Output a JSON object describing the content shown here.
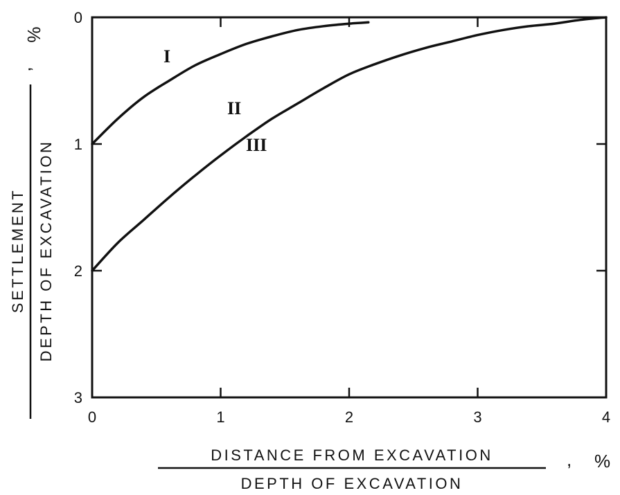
{
  "chart_data": {
    "type": "line",
    "xlim": [
      0,
      4
    ],
    "ylim": [
      0,
      3
    ],
    "y_inverted": true,
    "x_ticks": [
      "0",
      "1",
      "2",
      "3",
      "4"
    ],
    "y_ticks": [
      "0",
      "1",
      "2",
      "3"
    ],
    "xlabel": {
      "numerator": "DISTANCE FROM EXCAVATION",
      "denominator": "DEPTH OF EXCAVATION",
      "unit": "%",
      "separator": ","
    },
    "ylabel": {
      "numerator": "SETTLEMENT",
      "denominator": "DEPTH OF EXCAVATION",
      "unit": "%",
      "separator": ","
    },
    "grid": false,
    "curve_labels": [
      "I",
      "II",
      "III"
    ],
    "series": [
      {
        "name": "I",
        "x": [
          0,
          0.2,
          0.4,
          0.6,
          0.8,
          1.0,
          1.2,
          1.4,
          1.6,
          1.8,
          2.0,
          2.15
        ],
        "y": [
          1.0,
          0.8,
          0.63,
          0.5,
          0.38,
          0.29,
          0.21,
          0.15,
          0.1,
          0.07,
          0.05,
          0.04
        ]
      },
      {
        "name": "II / III",
        "x": [
          0,
          0.2,
          0.4,
          0.6,
          0.8,
          1.0,
          1.2,
          1.4,
          1.6,
          1.8,
          2.0,
          2.2,
          2.4,
          2.6,
          2.8,
          3.0,
          3.2,
          3.4,
          3.6,
          3.8,
          4.0
        ],
        "y": [
          2.0,
          1.78,
          1.6,
          1.42,
          1.25,
          1.09,
          0.94,
          0.8,
          0.68,
          0.56,
          0.45,
          0.37,
          0.3,
          0.24,
          0.19,
          0.14,
          0.1,
          0.07,
          0.05,
          0.02,
          0.0
        ]
      }
    ]
  }
}
